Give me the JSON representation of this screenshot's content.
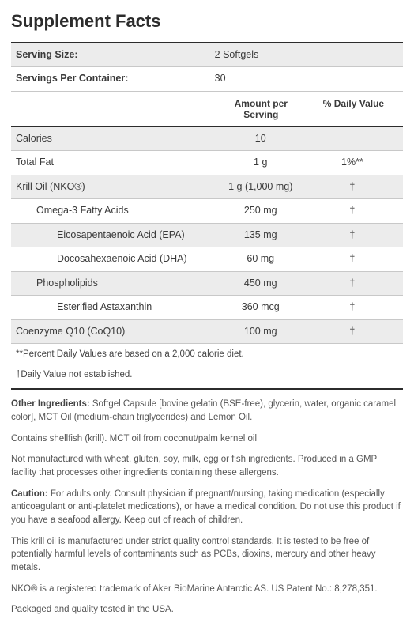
{
  "title": "Supplement Facts",
  "serving": {
    "size_label": "Serving Size:",
    "size_value": "2 Softgels",
    "per_label": "Servings Per Container:",
    "per_value": "30"
  },
  "columns": {
    "amount_line1": "Amount per",
    "amount_line2": "Serving",
    "dv": "% Daily Value"
  },
  "rows": [
    {
      "name": "Calories",
      "amount": "10",
      "dv": "",
      "indent": 0,
      "shade": true
    },
    {
      "name": "Total Fat",
      "amount": "1 g",
      "dv": "1%**",
      "indent": 0,
      "shade": false
    },
    {
      "name": "Krill Oil (NKO®)",
      "amount": "1 g (1,000 mg)",
      "dv": "†",
      "indent": 0,
      "shade": true
    },
    {
      "name": "Omega-3 Fatty Acids",
      "amount": "250 mg",
      "dv": "†",
      "indent": 1,
      "shade": false
    },
    {
      "name": "Eicosapentaenoic Acid (EPA)",
      "amount": "135 mg",
      "dv": "†",
      "indent": 2,
      "shade": true
    },
    {
      "name": "Docosahexaenoic Acid (DHA)",
      "amount": "60 mg",
      "dv": "†",
      "indent": 2,
      "shade": false
    },
    {
      "name": "Phospholipids",
      "amount": "450 mg",
      "dv": "†",
      "indent": 1,
      "shade": true
    },
    {
      "name": "Esterified Astaxanthin",
      "amount": "360 mcg",
      "dv": "†",
      "indent": 2,
      "shade": false
    },
    {
      "name": "Coenzyme Q10 (CoQ10)",
      "amount": "100 mg",
      "dv": "†",
      "indent": 0,
      "shade": true
    }
  ],
  "footnotes": [
    "**Percent Daily Values are based on a 2,000 calorie diet.",
    "†Daily Value not established."
  ],
  "paragraphs": [
    {
      "bold": "Other Ingredients:",
      "text": " Softgel Capsule [bovine gelatin (BSE-free), glycerin, water, organic caramel color], MCT Oil (medium-chain triglycerides) and Lemon Oil."
    },
    {
      "bold": "",
      "text": "Contains shellfish (krill). MCT oil from coconut/palm kernel oil"
    },
    {
      "bold": "",
      "text": "Not manufactured with wheat, gluten, soy, milk, egg or fish ingredients. Produced in a GMP facility that processes other ingredients containing these allergens."
    },
    {
      "bold": "Caution:",
      "text": " For adults only. Consult physician if pregnant/nursing, taking medication (especially anticoagulant or anti-platelet medications), or have a medical condition. Do not use this product if you have a seafood allergy. Keep out of reach of children."
    },
    {
      "bold": "",
      "text": "This krill oil is manufactured under strict quality control standards. It is tested to be free of potentially harmful levels of contaminants such as PCBs, dioxins, mercury and other heavy metals."
    },
    {
      "bold": "",
      "text": "NKO® is a registered trademark of Aker BioMarine Antarctic AS. US Patent No.: 8,278,351."
    },
    {
      "bold": "",
      "text": "Packaged and quality tested in the USA."
    }
  ],
  "style": {
    "bg": "#ffffff",
    "shade_bg": "#ececec",
    "text": "#3a3a3a",
    "rule_dark": "#2c2c2c",
    "rule_light": "#c8c8c8",
    "title_fontsize": 22,
    "body_fontsize": 13,
    "footnote_fontsize": 11.5
  }
}
